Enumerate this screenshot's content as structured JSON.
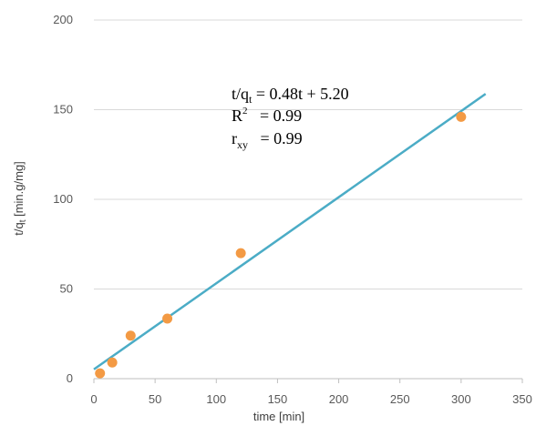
{
  "chart_data": {
    "type": "scatter",
    "xlabel": "time [min]",
    "ylabel": {
      "main": "t/q",
      "sub": "t",
      "rest": " [min.g/mg]"
    },
    "xlim": [
      0,
      350
    ],
    "ylim": [
      0,
      200
    ],
    "x_ticks": [
      0,
      50,
      100,
      150,
      200,
      250,
      300,
      350
    ],
    "y_ticks": [
      0,
      50,
      100,
      150,
      200
    ],
    "grid": {
      "horizontal": true,
      "vertical": false
    },
    "points": [
      {
        "x": 5,
        "y": 3
      },
      {
        "x": 15,
        "y": 9
      },
      {
        "x": 30,
        "y": 24
      },
      {
        "x": 60,
        "y": 33.5
      },
      {
        "x": 120,
        "y": 70
      },
      {
        "x": 300,
        "y": 146
      }
    ],
    "trendline": {
      "slope": 0.48,
      "intercept": 5.2,
      "x_start": 0,
      "x_end": 320
    },
    "annotation": {
      "eq_main": "t/q",
      "eq_sub": "t",
      "eq_rest": " = 0.48t + 5.20",
      "r2_main": "R",
      "r2_sup": "2",
      "r2_rest": "   = 0.99",
      "rxy_main": "r",
      "rxy_sub": "xy",
      "rxy_rest": "   = 0.99"
    },
    "colors": {
      "points": "#F39A44",
      "trendline": "#4BACC6",
      "grid": "#D9D9D9",
      "axis": "#BFBFBF"
    }
  }
}
